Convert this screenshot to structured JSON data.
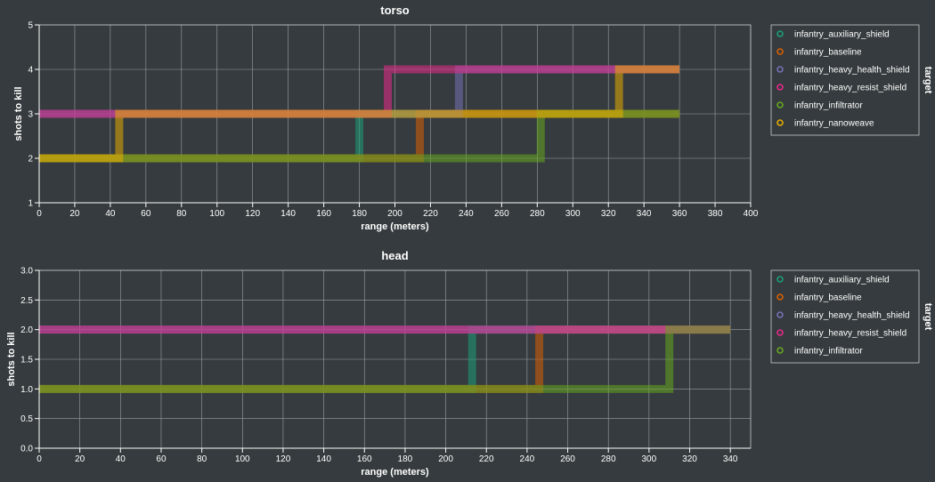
{
  "chart_data": [
    {
      "type": "line",
      "title": "torso",
      "xlabel": "range (meters)",
      "ylabel": "shots to kill",
      "xlim": [
        0,
        400
      ],
      "ylim": [
        1,
        5
      ],
      "xticks": [
        0,
        20,
        40,
        60,
        80,
        100,
        120,
        140,
        160,
        180,
        200,
        220,
        240,
        260,
        280,
        300,
        320,
        340,
        360,
        380,
        400
      ],
      "yticks": [
        1,
        2,
        3,
        4,
        5
      ],
      "ytick_labels": [
        "1",
        "2",
        "3",
        "4",
        "5"
      ],
      "grid": true,
      "step": "after",
      "legend_title": "target",
      "legend_position": "right",
      "series": [
        {
          "name": "infantry_auxiliary_shield",
          "color": "#1b9e77",
          "x": [
            0,
            180,
            180,
            360
          ],
          "y": [
            2,
            2,
            3,
            3
          ]
        },
        {
          "name": "infantry_baseline",
          "color": "#d95f02",
          "x": [
            0,
            214,
            214,
            360
          ],
          "y": [
            2,
            2,
            3,
            3
          ]
        },
        {
          "name": "infantry_heavy_health_shield",
          "color": "#7570b3",
          "x": [
            0,
            236,
            236,
            360
          ],
          "y": [
            3,
            3,
            4,
            4
          ]
        },
        {
          "name": "infantry_heavy_resist_shield",
          "color": "#e7298a",
          "x": [
            0,
            196,
            196,
            360
          ],
          "y": [
            3,
            3,
            4,
            4
          ]
        },
        {
          "name": "infantry_infiltrator",
          "color": "#66a61e",
          "x": [
            0,
            282,
            282,
            360
          ],
          "y": [
            2,
            2,
            3,
            3
          ]
        },
        {
          "name": "infantry_nanoweave",
          "color": "#e6ab02",
          "x": [
            0,
            45,
            45,
            326,
            326,
            360
          ],
          "y": [
            2,
            2,
            3,
            3,
            4,
            4
          ]
        }
      ]
    },
    {
      "type": "line",
      "title": "head",
      "xlabel": "range (meters)",
      "ylabel": "shots to kill",
      "xlim": [
        0,
        350
      ],
      "ylim": [
        0,
        3
      ],
      "xticks": [
        0,
        20,
        40,
        60,
        80,
        100,
        120,
        140,
        160,
        180,
        200,
        220,
        240,
        260,
        280,
        300,
        320,
        340
      ],
      "yticks": [
        0,
        0.5,
        1,
        1.5,
        2,
        2.5,
        3
      ],
      "ytick_labels": [
        "0.0",
        "0.5",
        "1.0",
        "1.5",
        "2.0",
        "2.5",
        "3.0"
      ],
      "grid": true,
      "step": "after",
      "legend_title": "target",
      "legend_position": "right",
      "series": [
        {
          "name": "infantry_auxiliary_shield",
          "color": "#1b9e77",
          "x": [
            0,
            213,
            213,
            340
          ],
          "y": [
            1,
            1,
            2,
            2
          ]
        },
        {
          "name": "infantry_baseline",
          "color": "#d95f02",
          "x": [
            0,
            246,
            246,
            340
          ],
          "y": [
            1,
            1,
            2,
            2
          ]
        },
        {
          "name": "infantry_heavy_health_shield",
          "color": "#7570b3",
          "x": [
            0,
            340
          ],
          "y": [
            2,
            2
          ]
        },
        {
          "name": "infantry_heavy_resist_shield",
          "color": "#e7298a",
          "x": [
            0,
            340
          ],
          "y": [
            2,
            2
          ]
        },
        {
          "name": "infantry_infiltrator",
          "color": "#66a61e",
          "x": [
            0,
            310,
            310,
            340
          ],
          "y": [
            1,
            1,
            2,
            2
          ]
        }
      ]
    }
  ]
}
